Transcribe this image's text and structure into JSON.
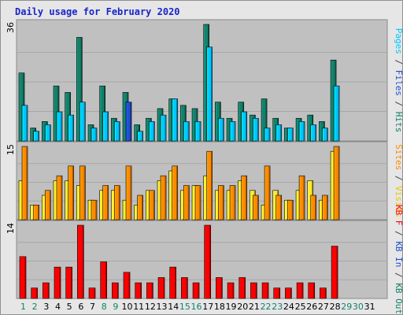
{
  "chart_data": {
    "type": "bar",
    "title": "Daily usage for February 2020",
    "categories": [
      "1",
      "2",
      "3",
      "4",
      "5",
      "6",
      "7",
      "8",
      "9",
      "10",
      "11",
      "12",
      "13",
      "14",
      "15",
      "16",
      "17",
      "18",
      "19",
      "20",
      "21",
      "22",
      "23",
      "24",
      "25",
      "26",
      "27",
      "28",
      "29",
      "30",
      "31"
    ],
    "weekend_days": [
      "1",
      "2",
      "8",
      "9",
      "15",
      "16",
      "22",
      "23",
      "29",
      "30"
    ],
    "highlighted_day": "10",
    "panels": [
      {
        "name": "hits-files-pages",
        "max_label": "36",
        "ylim": [
          0,
          36
        ],
        "series": [
          {
            "name": "Hits",
            "color": "#13806a",
            "values": [
              21,
              4,
              6,
              17,
              15,
              32,
              5,
              17,
              7,
              15,
              5,
              7,
              10,
              13,
              11,
              10,
              36,
              12,
              7,
              12,
              8,
              13,
              7,
              4,
              7,
              8,
              6,
              25
            ]
          },
          {
            "name": "Files",
            "color": "#00c8ff",
            "values": [
              11,
              3,
              5,
              9,
              8,
              12,
              4,
              9,
              6,
              null,
              3,
              6,
              8,
              13,
              6,
              6,
              29,
              7,
              6,
              9,
              7,
              4,
              5,
              4,
              6,
              5,
              4,
              17
            ]
          },
          {
            "name": "Pages",
            "color": "#00c8ff",
            "values": [
              null,
              null,
              null,
              null,
              null,
              null,
              null,
              null,
              null,
              null,
              null,
              null,
              null,
              null,
              null,
              null,
              null,
              null,
              null,
              null,
              null,
              null,
              null,
              null,
              null,
              null,
              null,
              null
            ]
          }
        ],
        "highlight": {
          "series": "Files",
          "day": "10",
          "value": 12,
          "color": "#1f4fd0"
        },
        "side_labels": [
          {
            "text": "Pages",
            "color": "#00c8ff"
          },
          {
            "text": " / ",
            "color": "#404040"
          },
          {
            "text": "Files",
            "color": "#2050d0"
          },
          {
            "text": " / ",
            "color": "#404040"
          },
          {
            "text": "Hits",
            "color": "#13806a"
          }
        ]
      },
      {
        "name": "visits-sites",
        "max_label": "15",
        "ylim": [
          0,
          15
        ],
        "series": [
          {
            "name": "Visits",
            "color": "#ffe830",
            "values": [
              8,
              3,
              5,
              8,
              8,
              7,
              4,
              6,
              6,
              4,
              3,
              6,
              8,
              10,
              6,
              7,
              9,
              6,
              6,
              8,
              6,
              3,
              6,
              4,
              6,
              8,
              4,
              14
            ]
          },
          {
            "name": "Sites",
            "color": "#ff8a00",
            "values": [
              15,
              3,
              6,
              9,
              11,
              11,
              4,
              7,
              7,
              11,
              5,
              6,
              9,
              11,
              7,
              7,
              14,
              7,
              7,
              9,
              5,
              11,
              5,
              4,
              9,
              5,
              5,
              15
            ]
          }
        ],
        "side_labels": [
          {
            "text": "Sites",
            "color": "#ff8a00"
          },
          {
            "text": " / ",
            "color": "#404040"
          },
          {
            "text": "Visits",
            "color": "#e8c800"
          }
        ]
      },
      {
        "name": "kbytes",
        "max_label": "14",
        "ylim": [
          0,
          14
        ],
        "series": [
          {
            "name": "KB F",
            "color": "#ff0000",
            "values": [
              8,
              2,
              3,
              6,
              6,
              14,
              2,
              7,
              3,
              5,
              3,
              3,
              4,
              6,
              4,
              3,
              14,
              4,
              3,
              4,
              3,
              3,
              2,
              2,
              3,
              3,
              2,
              10
            ]
          }
        ],
        "side_labels": [
          {
            "text": "KB F",
            "color": "#ff0000"
          },
          {
            "text": " / ",
            "color": "#404040"
          },
          {
            "text": "KB In",
            "color": "#2050d0"
          },
          {
            "text": " / ",
            "color": "#404040"
          },
          {
            "text": "KB Out",
            "color": "#13806a"
          }
        ]
      }
    ]
  }
}
